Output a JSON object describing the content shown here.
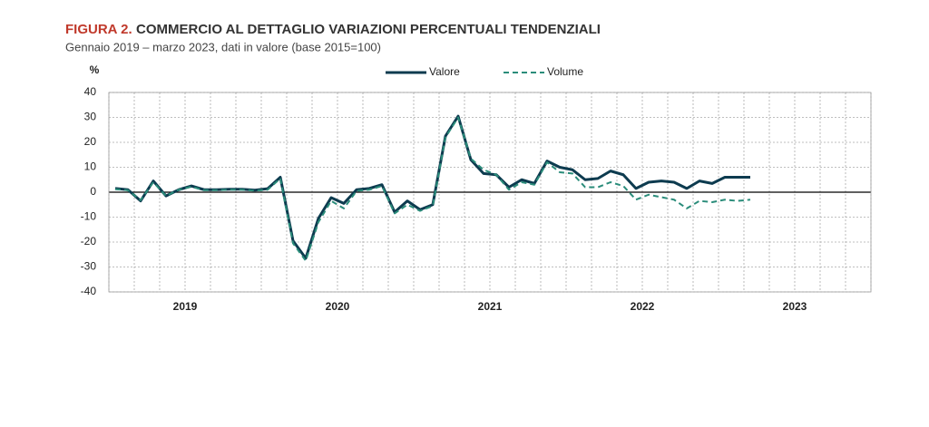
{
  "chart_data": {
    "type": "line",
    "figure_label": "FIGURA 2.",
    "title": "COMMERCIO AL DETTAGLIO VARIAZIONI PERCENTUALI TENDENZIALI",
    "subtitle": "Gennaio 2019 – marzo 2023, dati in valore (base 2015=100)",
    "y_label": "%",
    "categories": [
      "2019",
      null,
      null,
      null,
      null,
      null,
      null,
      null,
      null,
      null,
      null,
      null,
      "2020",
      null,
      null,
      null,
      null,
      null,
      null,
      null,
      null,
      null,
      null,
      null,
      "2021",
      null,
      null,
      null,
      null,
      null,
      null,
      null,
      null,
      null,
      null,
      null,
      "2022",
      null,
      null,
      null,
      null,
      null,
      null,
      null,
      null,
      null,
      null,
      null,
      "2023",
      null,
      null,
      null,
      null,
      null,
      null,
      null,
      null,
      null,
      null,
      null
    ],
    "series": [
      {
        "name": "Valore",
        "color": "#0d3b4f",
        "dashed": false,
        "values": [
          1.5,
          1,
          -3.5,
          4.5,
          -1.5,
          1,
          2.5,
          1,
          1,
          1.2,
          1.2,
          0.8,
          1.4,
          6,
          -19.5,
          -26.5,
          -10.5,
          -2.2,
          -4.5,
          1,
          1.5,
          3,
          -8,
          -3.5,
          -7,
          -5,
          22.5,
          30.5,
          13,
          7.5,
          7,
          2,
          5,
          3.5,
          12.5,
          10,
          9,
          5,
          5.5,
          8.5,
          7,
          1.5,
          4,
          4.5,
          4,
          1.5,
          4.5,
          3.5,
          6,
          6,
          6,
          null,
          null,
          null,
          null,
          null,
          null,
          null,
          null,
          null
        ]
      },
      {
        "name": "Volume",
        "color": "#2a8c7a",
        "dashed": true,
        "values": [
          1.2,
          0.8,
          -3.2,
          4,
          -1.5,
          1,
          2.2,
          0.8,
          0.8,
          1,
          1,
          0.6,
          1,
          5.5,
          -20.5,
          -27.5,
          -12,
          -3.5,
          -6.5,
          0.5,
          1,
          2.5,
          -8.5,
          -5,
          -7.5,
          -5.5,
          22,
          30,
          13.5,
          9,
          7,
          1,
          4,
          3,
          12,
          8,
          7.5,
          2,
          2,
          4,
          2.5,
          -3,
          -1,
          -2,
          -3,
          -6.5,
          -3.5,
          -4,
          -3,
          -3.5,
          -3,
          null,
          null,
          null,
          null,
          null,
          null,
          null,
          null,
          null
        ]
      }
    ],
    "ylim": [
      -40,
      40
    ],
    "yticks": [
      -40,
      -30,
      -20,
      -10,
      0,
      10,
      20,
      30,
      40
    ],
    "grid": true
  }
}
